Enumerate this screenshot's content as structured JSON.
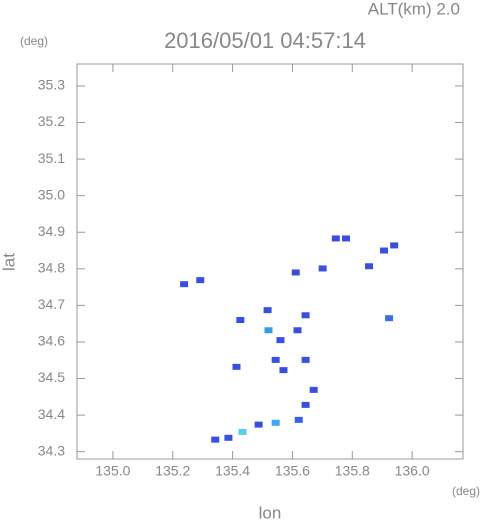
{
  "chart_data": {
    "type": "scatter",
    "title": "2016/05/01 04:57:14",
    "subtitle": "ALT(km) 2.0",
    "y_unit": "(deg)",
    "x_unit": "(deg)",
    "x_label": "lon",
    "y_label": "lat",
    "xlim": [
      134.88,
      136.17
    ],
    "ylim": [
      34.28,
      35.36
    ],
    "xticks": [
      {
        "value": 135.0,
        "label": "135.0"
      },
      135.2,
      135.4,
      135.6,
      135.8,
      {
        "value": 136.0,
        "label": "136.0"
      }
    ],
    "yticks": [
      34.3,
      34.4,
      34.5,
      34.6,
      34.7,
      34.8,
      34.9,
      {
        "value": 35.0,
        "label": "35.0"
      },
      35.1,
      35.2,
      35.3
    ],
    "x": [
      135.238,
      135.292,
      135.745,
      135.779,
      135.906,
      135.94,
      135.611,
      135.701,
      135.856,
      135.923,
      135.426,
      135.517,
      135.52,
      135.56,
      135.644,
      135.617,
      135.544,
      135.57,
      135.413,
      135.644,
      135.671,
      135.644,
      135.621,
      135.544,
      135.487,
      135.433,
      135.342,
      135.386
    ],
    "y": [
      34.758,
      34.769,
      34.883,
      34.883,
      34.85,
      34.864,
      34.79,
      34.801,
      34.807,
      34.665,
      34.66,
      34.687,
      34.632,
      34.605,
      34.673,
      34.632,
      34.551,
      34.523,
      34.532,
      34.551,
      34.469,
      34.428,
      34.387,
      34.379,
      34.374,
      34.354,
      34.333,
      34.338
    ],
    "colors": [
      "#3a4fe0",
      "#3a4fe0",
      "#3a4fe0",
      "#3a4fe0",
      "#3a4fe0",
      "#3a4fe0",
      "#3a4fe0",
      "#3a4fe0",
      "#3a4fe0",
      "#3a6fe8",
      "#3a4fe0",
      "#3a4fe0",
      "#2f9fe0",
      "#3a4fe0",
      "#3a4fe0",
      "#3a4fe0",
      "#3a4fe0",
      "#3a4fe0",
      "#3a4fe0",
      "#3a4fe0",
      "#3a4fe0",
      "#3a4fe0",
      "#3a5fe8",
      "#3fa8f0",
      "#3a4fe0",
      "#5ad0f0",
      "#3a4fe0",
      "#3a4fe0"
    ]
  }
}
